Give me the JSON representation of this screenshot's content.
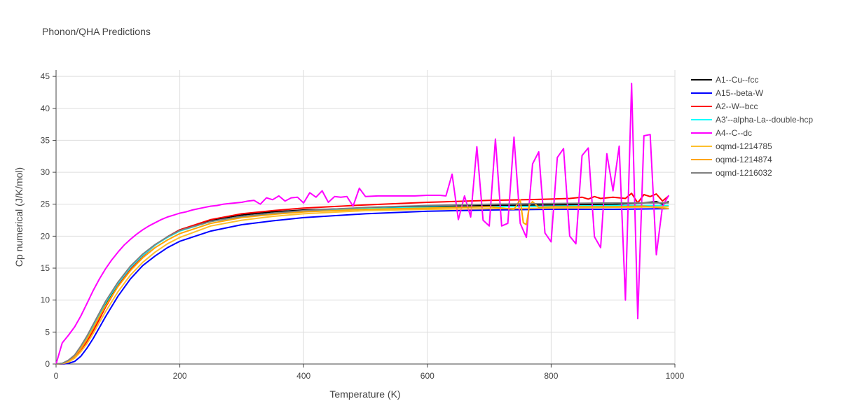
{
  "chart_data": {
    "type": "line",
    "title": "Phonon/QHA Predictions",
    "xlabel": "Temperature (K)",
    "ylabel": "Cp numerical (J/K/mol)",
    "xlim": [
      0,
      1000
    ],
    "ylim": [
      0,
      46
    ],
    "xticks": [
      0,
      200,
      400,
      600,
      800,
      1000
    ],
    "yticks": [
      0,
      5,
      10,
      15,
      20,
      25,
      30,
      35,
      40,
      45
    ],
    "grid": true,
    "legend_position": "top-right, outside plot",
    "series": [
      {
        "name": "A1--Cu--fcc",
        "color": "#000000",
        "x": [
          0,
          10,
          20,
          30,
          40,
          50,
          60,
          70,
          80,
          100,
          120,
          140,
          160,
          180,
          200,
          250,
          300,
          350,
          400,
          500,
          600,
          700,
          800,
          900,
          950,
          970,
          980,
          990
        ],
        "y": [
          0,
          0.1,
          0.5,
          1.2,
          2.5,
          4.0,
          5.8,
          7.6,
          9.4,
          12.4,
          15.0,
          17.0,
          18.6,
          19.9,
          21.0,
          22.5,
          23.3,
          23.8,
          24.1,
          24.4,
          24.6,
          24.8,
          24.9,
          25.0,
          25.2,
          25.4,
          25.0,
          25.4
        ]
      },
      {
        "name": "A15--beta-W",
        "color": "#0000ff",
        "x": [
          0,
          10,
          20,
          30,
          40,
          50,
          60,
          70,
          80,
          100,
          120,
          140,
          160,
          180,
          200,
          250,
          300,
          350,
          400,
          500,
          600,
          700,
          800,
          900,
          990
        ],
        "y": [
          0,
          0,
          0.1,
          0.4,
          1.2,
          2.5,
          4.0,
          5.7,
          7.4,
          10.6,
          13.3,
          15.4,
          16.9,
          18.2,
          19.2,
          20.8,
          21.8,
          22.4,
          22.9,
          23.5,
          23.9,
          24.1,
          24.2,
          24.2,
          24.3
        ]
      },
      {
        "name": "A2--W--bcc",
        "color": "#ff0000",
        "x": [
          0,
          10,
          20,
          30,
          40,
          50,
          60,
          70,
          80,
          100,
          120,
          140,
          160,
          180,
          200,
          250,
          300,
          350,
          400,
          500,
          600,
          700,
          760,
          800,
          830,
          850,
          860,
          870,
          880,
          900,
          920,
          930,
          940,
          950,
          960,
          970,
          980,
          990
        ],
        "y": [
          0,
          0.05,
          0.3,
          1.0,
          2.0,
          3.5,
          5.2,
          7.0,
          8.9,
          12.2,
          14.9,
          16.9,
          18.6,
          19.9,
          21.0,
          22.6,
          23.5,
          24.0,
          24.4,
          24.9,
          25.3,
          25.6,
          25.7,
          25.8,
          25.9,
          26.1,
          25.8,
          26.2,
          25.9,
          26.1,
          25.9,
          26.7,
          25.2,
          26.5,
          26.2,
          26.6,
          25.5,
          26.3
        ]
      },
      {
        "name": "A3'--alpha-La--double-hcp",
        "color": "#00ffff",
        "x": [
          0,
          10,
          20,
          30,
          40,
          50,
          60,
          70,
          80,
          100,
          120,
          140,
          160,
          180,
          200,
          250,
          300,
          350,
          400,
          500,
          600,
          700,
          800,
          900,
          990
        ],
        "y": [
          0,
          0.1,
          0.5,
          1.3,
          2.6,
          4.2,
          6.0,
          7.8,
          9.6,
          12.6,
          15.1,
          17.0,
          18.6,
          19.8,
          20.8,
          22.3,
          23.1,
          23.6,
          23.9,
          24.3,
          24.5,
          24.6,
          24.7,
          24.8,
          24.8
        ]
      },
      {
        "name": "A4--C--dc",
        "color": "#ff00ff",
        "x": [
          0,
          10,
          20,
          30,
          40,
          50,
          60,
          70,
          80,
          90,
          100,
          110,
          120,
          130,
          140,
          150,
          160,
          170,
          180,
          190,
          200,
          210,
          220,
          230,
          240,
          250,
          260,
          270,
          280,
          290,
          300,
          310,
          320,
          330,
          340,
          350,
          360,
          370,
          380,
          390,
          400,
          410,
          420,
          430,
          440,
          450,
          460,
          470,
          480,
          490,
          500,
          520,
          540,
          560,
          580,
          600,
          620,
          630,
          640,
          650,
          660,
          670,
          680,
          690,
          700,
          710,
          720,
          730,
          740,
          750,
          760,
          770,
          780,
          790,
          800,
          810,
          820,
          830,
          840,
          850,
          860,
          870,
          880,
          890,
          900,
          910,
          920,
          930,
          940,
          950,
          960,
          970,
          980,
          990
        ],
        "y": [
          0,
          3.3,
          4.5,
          5.8,
          7.5,
          9.5,
          11.5,
          13.3,
          14.9,
          16.3,
          17.5,
          18.6,
          19.5,
          20.3,
          21.0,
          21.6,
          22.1,
          22.6,
          23.0,
          23.3,
          23.6,
          23.8,
          24.1,
          24.3,
          24.5,
          24.7,
          24.8,
          25.0,
          25.1,
          25.2,
          25.3,
          25.5,
          25.6,
          25.0,
          26.0,
          25.7,
          26.3,
          25.5,
          26.0,
          26.1,
          25.2,
          26.8,
          26.1,
          27.1,
          25.3,
          26.2,
          26.1,
          26.2,
          24.7,
          27.5,
          26.2,
          26.3,
          26.3,
          26.3,
          26.3,
          26.4,
          26.4,
          26.3,
          29.7,
          22.6,
          26.3,
          23.0,
          34.0,
          22.5,
          21.6,
          35.2,
          21.6,
          22.0,
          35.5,
          22.0,
          19.8,
          31.3,
          33.2,
          20.5,
          19.1,
          32.3,
          33.7,
          20.0,
          18.8,
          32.6,
          33.8,
          19.9,
          18.2,
          32.9,
          27.1,
          34.1,
          10.0,
          43.9,
          7.1,
          35.7,
          35.9,
          17.1,
          24.7,
          26.4
        ]
      },
      {
        "name": "oqmd-1214785",
        "color": "#fdbf2d",
        "x": [
          0,
          10,
          20,
          30,
          40,
          50,
          60,
          70,
          80,
          100,
          120,
          140,
          160,
          180,
          200,
          250,
          300,
          350,
          400,
          500,
          600,
          700,
          800,
          900,
          990
        ],
        "y": [
          0,
          0.05,
          0.3,
          0.9,
          1.9,
          3.2,
          4.8,
          6.5,
          8.2,
          11.3,
          13.9,
          15.9,
          17.5,
          18.8,
          19.8,
          21.6,
          22.5,
          23.1,
          23.5,
          24.0,
          24.2,
          24.3,
          24.4,
          24.5,
          24.6
        ]
      },
      {
        "name": "oqmd-1214874",
        "color": "#ffa500",
        "x": [
          0,
          10,
          20,
          30,
          40,
          50,
          60,
          70,
          80,
          100,
          120,
          140,
          160,
          180,
          200,
          250,
          300,
          350,
          400,
          500,
          600,
          650,
          700,
          740,
          750,
          755,
          760,
          765,
          770,
          780,
          800,
          850,
          900,
          950,
          990
        ],
        "y": [
          0,
          0.1,
          0.5,
          1.2,
          2.4,
          3.9,
          5.6,
          7.4,
          9.1,
          12.1,
          14.6,
          16.6,
          18.2,
          19.4,
          20.4,
          22.0,
          22.9,
          23.4,
          23.8,
          24.2,
          24.4,
          24.5,
          24.6,
          24.2,
          25.7,
          22.1,
          21.8,
          24.9,
          25.4,
          24.5,
          24.6,
          24.6,
          24.6,
          24.7,
          24.3
        ]
      },
      {
        "name": "oqmd-1216032",
        "color": "#808080",
        "x": [
          0,
          10,
          20,
          30,
          40,
          50,
          60,
          70,
          80,
          100,
          120,
          140,
          160,
          180,
          200,
          250,
          300,
          350,
          400,
          500,
          600,
          700,
          800,
          900,
          990
        ],
        "y": [
          0,
          0.1,
          0.6,
          1.4,
          2.8,
          4.4,
          6.2,
          8.0,
          9.8,
          12.8,
          15.3,
          17.2,
          18.7,
          19.9,
          20.9,
          22.3,
          23.1,
          23.6,
          24.0,
          24.5,
          24.8,
          25.0,
          25.1,
          25.2,
          25.2
        ]
      }
    ]
  }
}
